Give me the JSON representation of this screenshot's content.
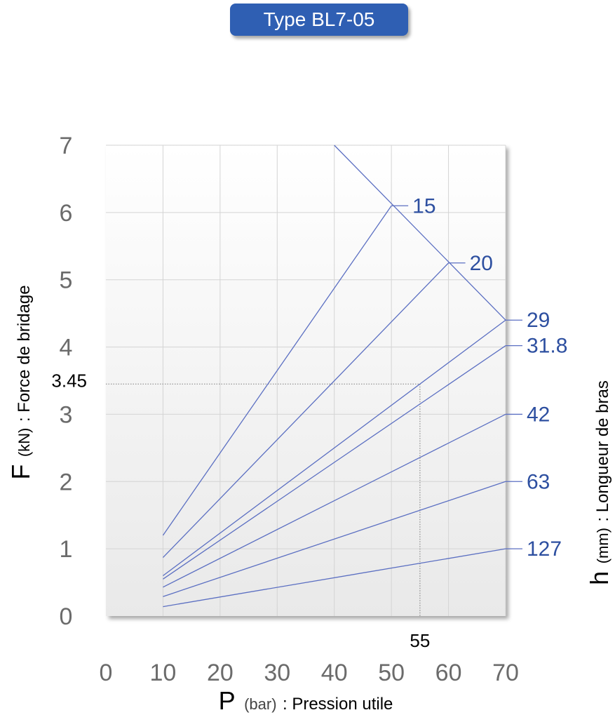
{
  "chart_data": {
    "type": "line",
    "title": "Type BL7-05",
    "xlabel": {
      "symbol": "P",
      "unit": "(bar)",
      "text": ": Pression utile"
    },
    "ylabel": {
      "symbol": "F",
      "unit": "(kN)",
      "text": ": Force de bridage"
    },
    "rlabel": {
      "symbol": "h",
      "unit": "(mm)",
      "text": ": Longueur de bras"
    },
    "xlim": [
      0,
      70
    ],
    "ylim": [
      0,
      7
    ],
    "xticks": [
      "0",
      "10",
      "20",
      "30",
      "40",
      "50",
      "60",
      "70"
    ],
    "yticks": [
      "0",
      "1",
      "2",
      "3",
      "4",
      "5",
      "6",
      "7"
    ],
    "grid": true,
    "series": [
      {
        "name": "15",
        "x": [
          10,
          50
        ],
        "y": [
          1.2,
          6.1
        ]
      },
      {
        "name": "20",
        "x": [
          10,
          60
        ],
        "y": [
          0.87,
          5.25
        ]
      },
      {
        "name": "29",
        "x": [
          10,
          70
        ],
        "y": [
          0.6,
          4.4
        ]
      },
      {
        "name": "31.8",
        "x": [
          10,
          70
        ],
        "y": [
          0.55,
          4.02
        ]
      },
      {
        "name": "42",
        "x": [
          10,
          70
        ],
        "y": [
          0.43,
          3.0
        ]
      },
      {
        "name": "63",
        "x": [
          10,
          70
        ],
        "y": [
          0.29,
          2.0
        ]
      },
      {
        "name": "127",
        "x": [
          10,
          70
        ],
        "y": [
          0.14,
          1.0
        ]
      }
    ],
    "limit_line": {
      "x": [
        40,
        70
      ],
      "y": [
        7.0,
        4.4
      ]
    },
    "reference": {
      "x": 55,
      "y": 3.45,
      "x_label": "55",
      "y_label": "3.45"
    },
    "colors": {
      "series": "#5b6fc2",
      "labels": "#2d4fa0",
      "axis_text": "#6b6b6b",
      "grid": "#d4d4d4",
      "badge": "#2f5fb3"
    }
  }
}
